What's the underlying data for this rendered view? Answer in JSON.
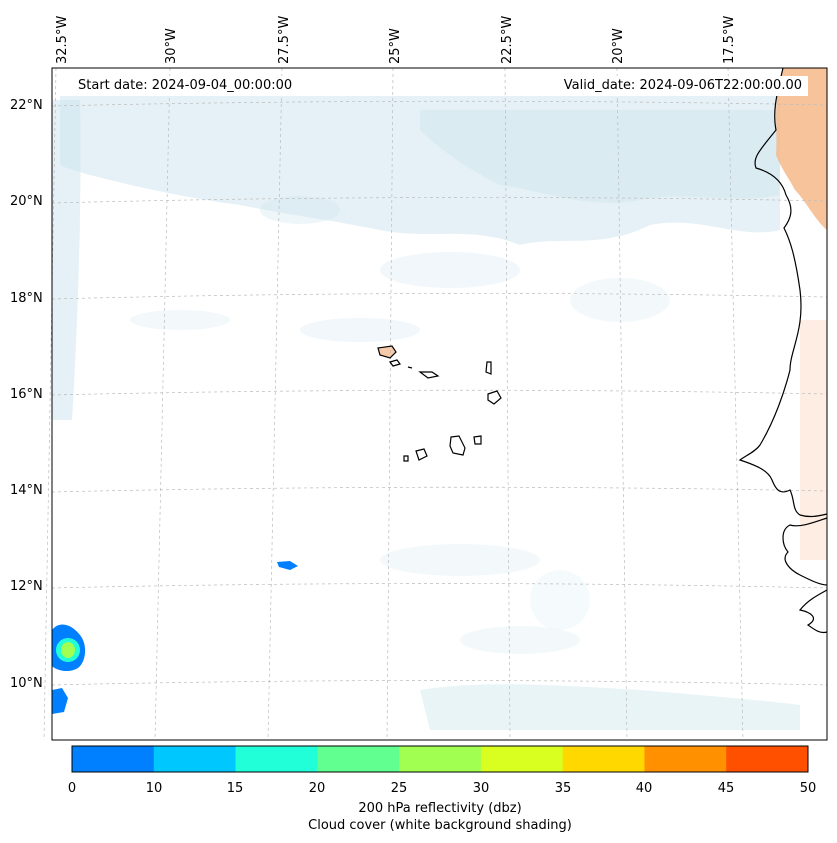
{
  "map": {
    "start_date": "Start date: 2024-09-04_00:00:00",
    "valid_date": "Valid_date: 2024-09-06T22:00:00.00",
    "longitude_labels": [
      "32.5°W",
      "30°W",
      "27.5°W",
      "25°W",
      "22.5°W",
      "20°W",
      "17.5°W"
    ],
    "latitude_labels": [
      "22°N",
      "20°N",
      "18°N",
      "16°N",
      "14°N",
      "12°N",
      "10°N"
    ],
    "gridlines": "dashed"
  },
  "colorbar": {
    "ticks": [
      "0",
      "10",
      "15",
      "20",
      "25",
      "30",
      "35",
      "40",
      "45",
      "50"
    ],
    "colors": [
      "#0080ff",
      "#00c8ff",
      "#20ffd8",
      "#60ff90",
      "#a0ff50",
      "#d8ff20",
      "#ffd800",
      "#ff9000",
      "#ff5000"
    ],
    "title_line1": "200 hPa reflectivity (dbz)",
    "title_line2": "Cloud cover (white background shading)"
  },
  "colors": {
    "cloud": "#cfe6ee",
    "land_warm": "#f6b98a",
    "coastline": "#000000",
    "grid": "#bbbbbb"
  }
}
